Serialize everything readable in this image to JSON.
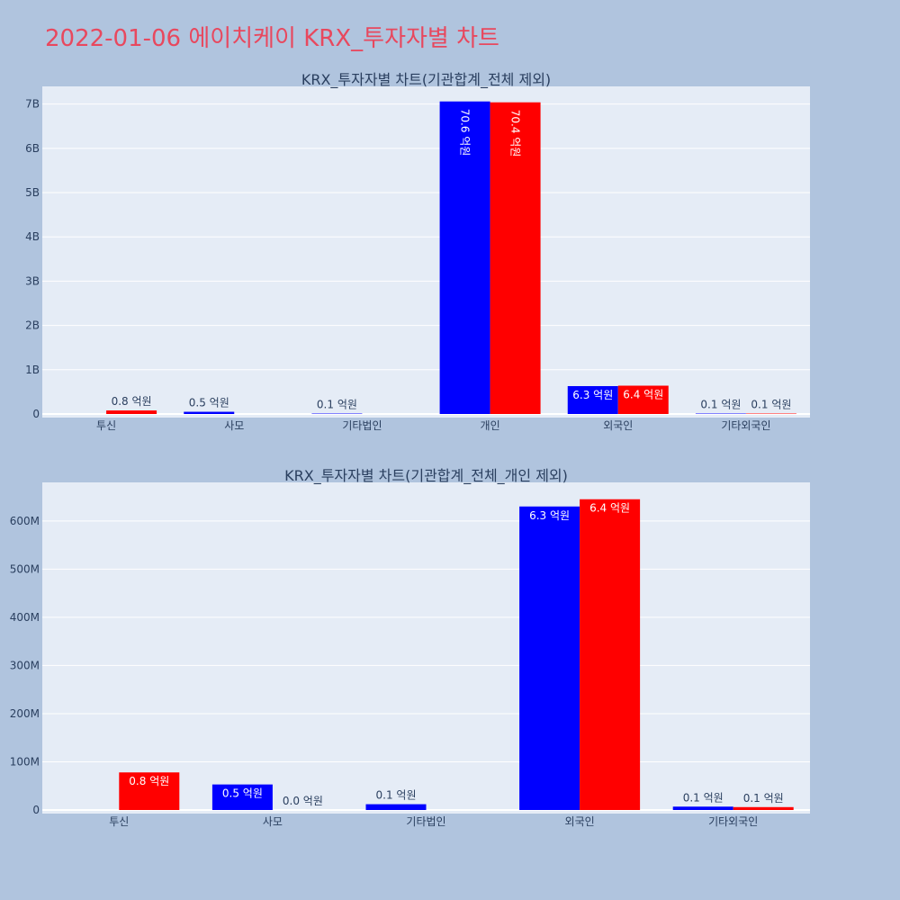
{
  "page": {
    "title": "2022-01-06 에이치케이 KRX_투자자별 차트",
    "title_color": "#e8485e",
    "background": "#b0c4de"
  },
  "colors": {
    "plot_bg": "#e5ecf6",
    "grid": "#ffffff",
    "buy": "#0000ff",
    "sell": "#ff0000",
    "text": "#2a3f5f",
    "label_inside": "#ffffff"
  },
  "chart_data": [
    {
      "type": "bar",
      "title": "KRX_투자자별 차트(기관합계_전체 제외)",
      "categories": [
        "투신",
        "사모",
        "기타법인",
        "개인",
        "외국인",
        "기타외국인"
      ],
      "ylim": [
        0,
        7400000000
      ],
      "yticks": [
        0,
        1000000000,
        2000000000,
        3000000000,
        4000000000,
        5000000000,
        6000000000,
        7000000000
      ],
      "ytick_labels": [
        "0",
        "1B",
        "2B",
        "3B",
        "4B",
        "5B",
        "6B",
        "7B"
      ],
      "grid": true,
      "series": [
        {
          "color": "#0000ff",
          "values": [
            0,
            50000000,
            10000000,
            7060000000,
            630000000,
            10000000
          ],
          "labels": [
            "",
            "0.5 억원",
            "0.1 억원",
            "70.6 억원",
            "6.3 억원",
            "0.1 억원"
          ],
          "label_pos": [
            "none",
            "outside",
            "outside",
            "inside-vertical",
            "inside",
            "outside"
          ]
        },
        {
          "color": "#ff0000",
          "values": [
            80000000,
            0,
            0,
            7040000000,
            640000000,
            10000000
          ],
          "labels": [
            "0.8 억원",
            "",
            "",
            "70.4 억원",
            "6.4 억원",
            "0.1 억원"
          ],
          "label_pos": [
            "outside",
            "none",
            "none",
            "inside-vertical",
            "inside",
            "outside"
          ]
        }
      ]
    },
    {
      "type": "bar",
      "title": "KRX_투자자별 차트(기관합계_전체_개인 제외)",
      "categories": [
        "투신",
        "사모",
        "기타법인",
        "외국인",
        "기타외국인"
      ],
      "ylim": [
        0,
        680000000
      ],
      "yticks": [
        0,
        100000000,
        200000000,
        300000000,
        400000000,
        500000000,
        600000000
      ],
      "ytick_labels": [
        "0",
        "100M",
        "200M",
        "300M",
        "400M",
        "500M",
        "600M"
      ],
      "grid": true,
      "series": [
        {
          "color": "#0000ff",
          "values": [
            0,
            53000000,
            12000000,
            630000000,
            7000000
          ],
          "labels": [
            "",
            "0.5 억원",
            "0.1 억원",
            "6.3 억원",
            "0.1 억원"
          ],
          "label_pos": [
            "none",
            "inside",
            "outside",
            "inside",
            "outside"
          ]
        },
        {
          "color": "#ff0000",
          "values": [
            78000000,
            0,
            0,
            645000000,
            6000000
          ],
          "labels": [
            "0.8 억원",
            "0.0 억원",
            "",
            "6.4 억원",
            "0.1 억원"
          ],
          "label_pos": [
            "inside",
            "outside",
            "none",
            "inside",
            "outside"
          ]
        }
      ]
    }
  ]
}
